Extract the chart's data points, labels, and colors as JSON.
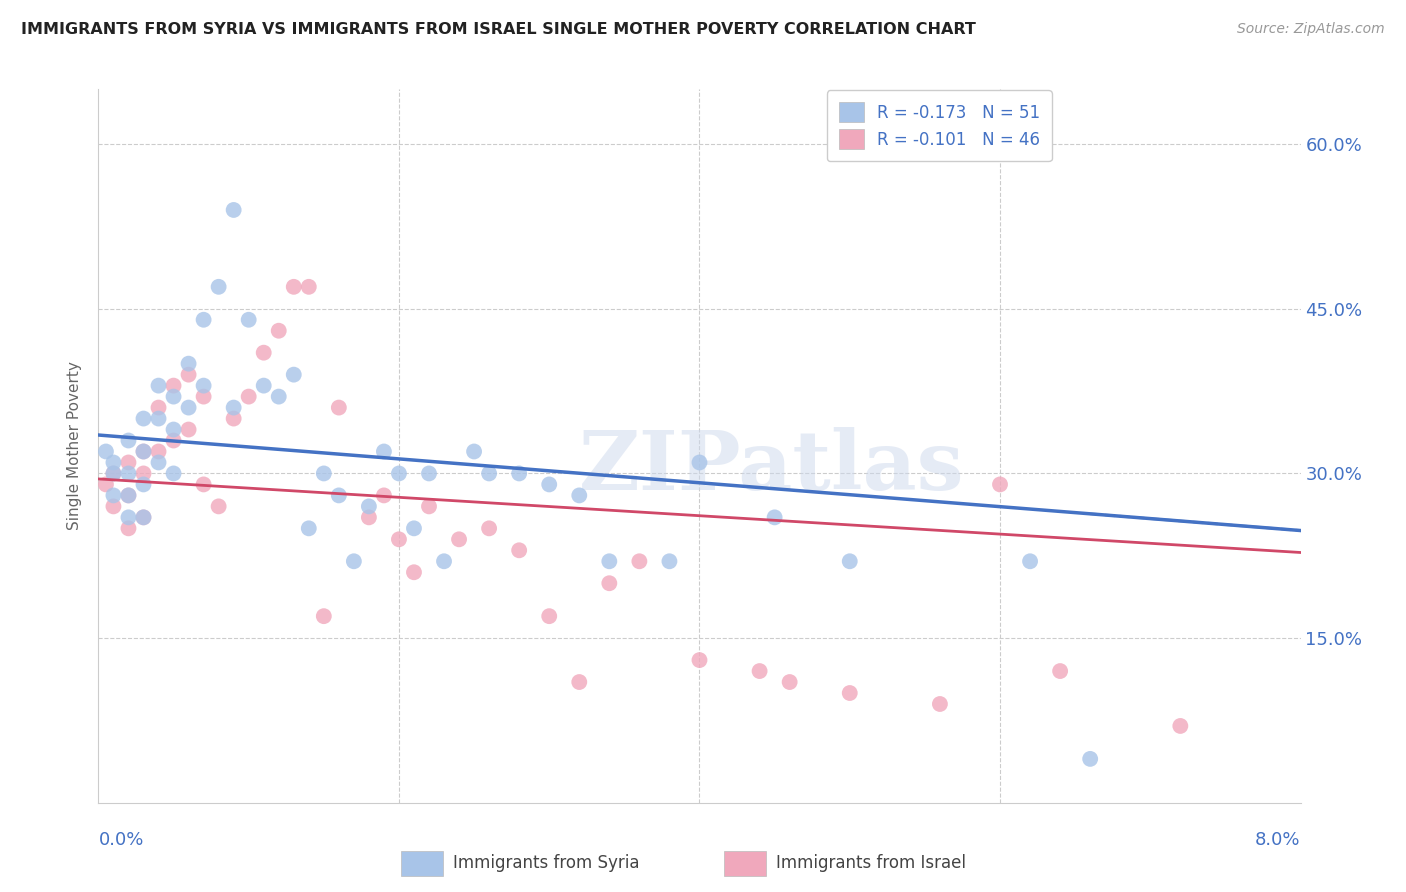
{
  "title": "IMMIGRANTS FROM SYRIA VS IMMIGRANTS FROM ISRAEL SINGLE MOTHER POVERTY CORRELATION CHART",
  "source": "Source: ZipAtlas.com",
  "ylabel": "Single Mother Poverty",
  "xmin": 0.0,
  "xmax": 0.08,
  "ymin": 0.0,
  "ymax": 0.65,
  "yticks": [
    0.15,
    0.3,
    0.45,
    0.6
  ],
  "ytick_labels": [
    "15.0%",
    "30.0%",
    "45.0%",
    "60.0%"
  ],
  "color_syria": "#a8c4e8",
  "color_israel": "#f0a8bc",
  "color_syria_line": "#4472c4",
  "color_israel_line": "#d04868",
  "color_blue": "#4472c4",
  "color_grid": "#cccccc",
  "legend_syria_r": "-0.173",
  "legend_syria_n": "51",
  "legend_israel_r": "-0.101",
  "legend_israel_n": "46",
  "watermark": "ZIPatlas",
  "syria_x": [
    0.0005,
    0.001,
    0.001,
    0.001,
    0.002,
    0.002,
    0.002,
    0.002,
    0.003,
    0.003,
    0.003,
    0.003,
    0.004,
    0.004,
    0.004,
    0.005,
    0.005,
    0.005,
    0.006,
    0.006,
    0.007,
    0.007,
    0.008,
    0.009,
    0.009,
    0.01,
    0.011,
    0.012,
    0.013,
    0.014,
    0.015,
    0.016,
    0.017,
    0.018,
    0.019,
    0.02,
    0.021,
    0.022,
    0.023,
    0.025,
    0.026,
    0.028,
    0.03,
    0.032,
    0.034,
    0.038,
    0.04,
    0.045,
    0.05,
    0.062,
    0.066
  ],
  "syria_y": [
    0.32,
    0.31,
    0.3,
    0.28,
    0.33,
    0.3,
    0.28,
    0.26,
    0.35,
    0.32,
    0.29,
    0.26,
    0.38,
    0.35,
    0.31,
    0.37,
    0.34,
    0.3,
    0.4,
    0.36,
    0.44,
    0.38,
    0.47,
    0.54,
    0.36,
    0.44,
    0.38,
    0.37,
    0.39,
    0.25,
    0.3,
    0.28,
    0.22,
    0.27,
    0.32,
    0.3,
    0.25,
    0.3,
    0.22,
    0.32,
    0.3,
    0.3,
    0.29,
    0.28,
    0.22,
    0.22,
    0.31,
    0.26,
    0.22,
    0.22,
    0.04
  ],
  "israel_x": [
    0.0005,
    0.001,
    0.001,
    0.002,
    0.002,
    0.002,
    0.003,
    0.003,
    0.003,
    0.004,
    0.004,
    0.005,
    0.005,
    0.006,
    0.006,
    0.007,
    0.007,
    0.008,
    0.009,
    0.01,
    0.011,
    0.012,
    0.013,
    0.014,
    0.015,
    0.016,
    0.018,
    0.019,
    0.02,
    0.021,
    0.022,
    0.024,
    0.026,
    0.028,
    0.03,
    0.032,
    0.034,
    0.036,
    0.04,
    0.044,
    0.046,
    0.05,
    0.056,
    0.06,
    0.064,
    0.072
  ],
  "israel_y": [
    0.29,
    0.3,
    0.27,
    0.31,
    0.28,
    0.25,
    0.32,
    0.3,
    0.26,
    0.36,
    0.32,
    0.38,
    0.33,
    0.39,
    0.34,
    0.37,
    0.29,
    0.27,
    0.35,
    0.37,
    0.41,
    0.43,
    0.47,
    0.47,
    0.17,
    0.36,
    0.26,
    0.28,
    0.24,
    0.21,
    0.27,
    0.24,
    0.25,
    0.23,
    0.17,
    0.11,
    0.2,
    0.22,
    0.13,
    0.12,
    0.11,
    0.1,
    0.09,
    0.29,
    0.12,
    0.07
  ]
}
